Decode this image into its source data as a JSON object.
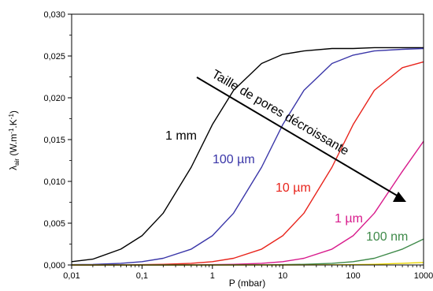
{
  "chart_data": {
    "type": "line",
    "xlabel": "P (mbar)",
    "ylabel": "λair (W.m-1.K-1)",
    "ylabel_main": "λ",
    "ylabel_sub": "air",
    "ylabel_rest": " (W.m",
    "ylabel_exp1": "-1",
    "ylabel_mid": ".K",
    "ylabel_exp2": "-1",
    "ylabel_end": ")",
    "x_scale": "log",
    "xlim": [
      0.01,
      1000
    ],
    "ylim": [
      0,
      0.03
    ],
    "x_ticks": [
      0.01,
      0.1,
      1,
      10,
      100,
      1000
    ],
    "x_tick_labels": [
      "0,01",
      "0,1",
      "1",
      "10",
      "100",
      "1000"
    ],
    "y_ticks": [
      0,
      0.005,
      0.01,
      0.015,
      0.02,
      0.025,
      0.03
    ],
    "y_tick_labels": [
      "0,000",
      "0,005",
      "0,010",
      "0,015",
      "0,020",
      "0,025",
      "0,030"
    ],
    "grid": false,
    "x": [
      0.01,
      0.02,
      0.05,
      0.1,
      0.2,
      0.5,
      1,
      2,
      5,
      10,
      20,
      50,
      100,
      200,
      500,
      1000
    ],
    "series": [
      {
        "name": "1 mm",
        "color": "#000000",
        "values": [
          0.0004,
          0.0007,
          0.0019,
          0.0035,
          0.0062,
          0.0117,
          0.0168,
          0.0209,
          0.0241,
          0.0252,
          0.0256,
          0.0259,
          0.0259,
          0.026,
          0.026,
          0.026
        ]
      },
      {
        "name": "100 µm",
        "color": "#3a36a8",
        "values": [
          4e-05,
          7e-05,
          0.0002,
          0.0004,
          0.0008,
          0.0019,
          0.0035,
          0.0062,
          0.0117,
          0.0168,
          0.0209,
          0.0241,
          0.0251,
          0.0256,
          0.0258,
          0.0259
        ]
      },
      {
        "name": "10 µm",
        "color": "#e8241c",
        "values": [
          0,
          0,
          2e-05,
          4e-05,
          8e-05,
          0.0002,
          0.0004,
          0.0008,
          0.0019,
          0.0035,
          0.0062,
          0.0117,
          0.0168,
          0.0209,
          0.0236,
          0.0243
        ]
      },
      {
        "name": "1 µm",
        "color": "#d81b8c",
        "values": [
          0,
          0,
          0,
          0,
          0,
          2e-05,
          4e-05,
          8e-05,
          0.0002,
          0.0004,
          0.0008,
          0.0019,
          0.0035,
          0.0062,
          0.0112,
          0.0148
        ]
      },
      {
        "name": "100 nm",
        "color": "#3f8a4a",
        "values": [
          0,
          0,
          0,
          0,
          0,
          0,
          0,
          1e-05,
          2e-05,
          4e-05,
          8e-05,
          0.0002,
          0.0004,
          0.0008,
          0.0019,
          0.0031
        ]
      },
      {
        "name": "",
        "color": "#e8d400",
        "values": [
          0,
          0,
          0,
          0,
          0,
          0,
          0,
          0,
          0,
          0,
          1e-05,
          2e-05,
          4e-05,
          8e-05,
          0.0002,
          0.0003
        ]
      }
    ],
    "annotations": [
      {
        "text": "Taille de pores décroissante",
        "kind": "arrow"
      }
    ]
  }
}
